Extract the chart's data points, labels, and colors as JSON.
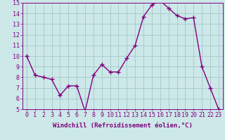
{
  "x": [
    0,
    1,
    2,
    3,
    4,
    5,
    6,
    7,
    8,
    9,
    10,
    11,
    12,
    13,
    14,
    15,
    16,
    17,
    18,
    19,
    20,
    21,
    22,
    23
  ],
  "y": [
    10.0,
    8.2,
    8.0,
    7.8,
    6.3,
    7.2,
    7.2,
    4.8,
    8.2,
    9.2,
    8.5,
    8.5,
    9.8,
    11.0,
    13.7,
    14.8,
    15.2,
    14.5,
    13.8,
    13.5,
    13.6,
    9.0,
    7.0,
    5.0
  ],
  "line_color": "#800080",
  "marker": "+",
  "marker_size": 4,
  "marker_color": "#800080",
  "background_color": "#cce8e8",
  "grid_color": "#aacccc",
  "xlabel": "Windchill (Refroidissement éolien,°C)",
  "ylabel": "",
  "ylim": [
    5,
    15
  ],
  "xlim": [
    -0.5,
    23.5
  ],
  "yticks": [
    5,
    6,
    7,
    8,
    9,
    10,
    11,
    12,
    13,
    14,
    15
  ],
  "xticks": [
    0,
    1,
    2,
    3,
    4,
    5,
    6,
    7,
    8,
    9,
    10,
    11,
    12,
    13,
    14,
    15,
    16,
    17,
    18,
    19,
    20,
    21,
    22,
    23
  ],
  "xlabel_fontsize": 6.5,
  "tick_fontsize": 6,
  "line_width": 1.0
}
